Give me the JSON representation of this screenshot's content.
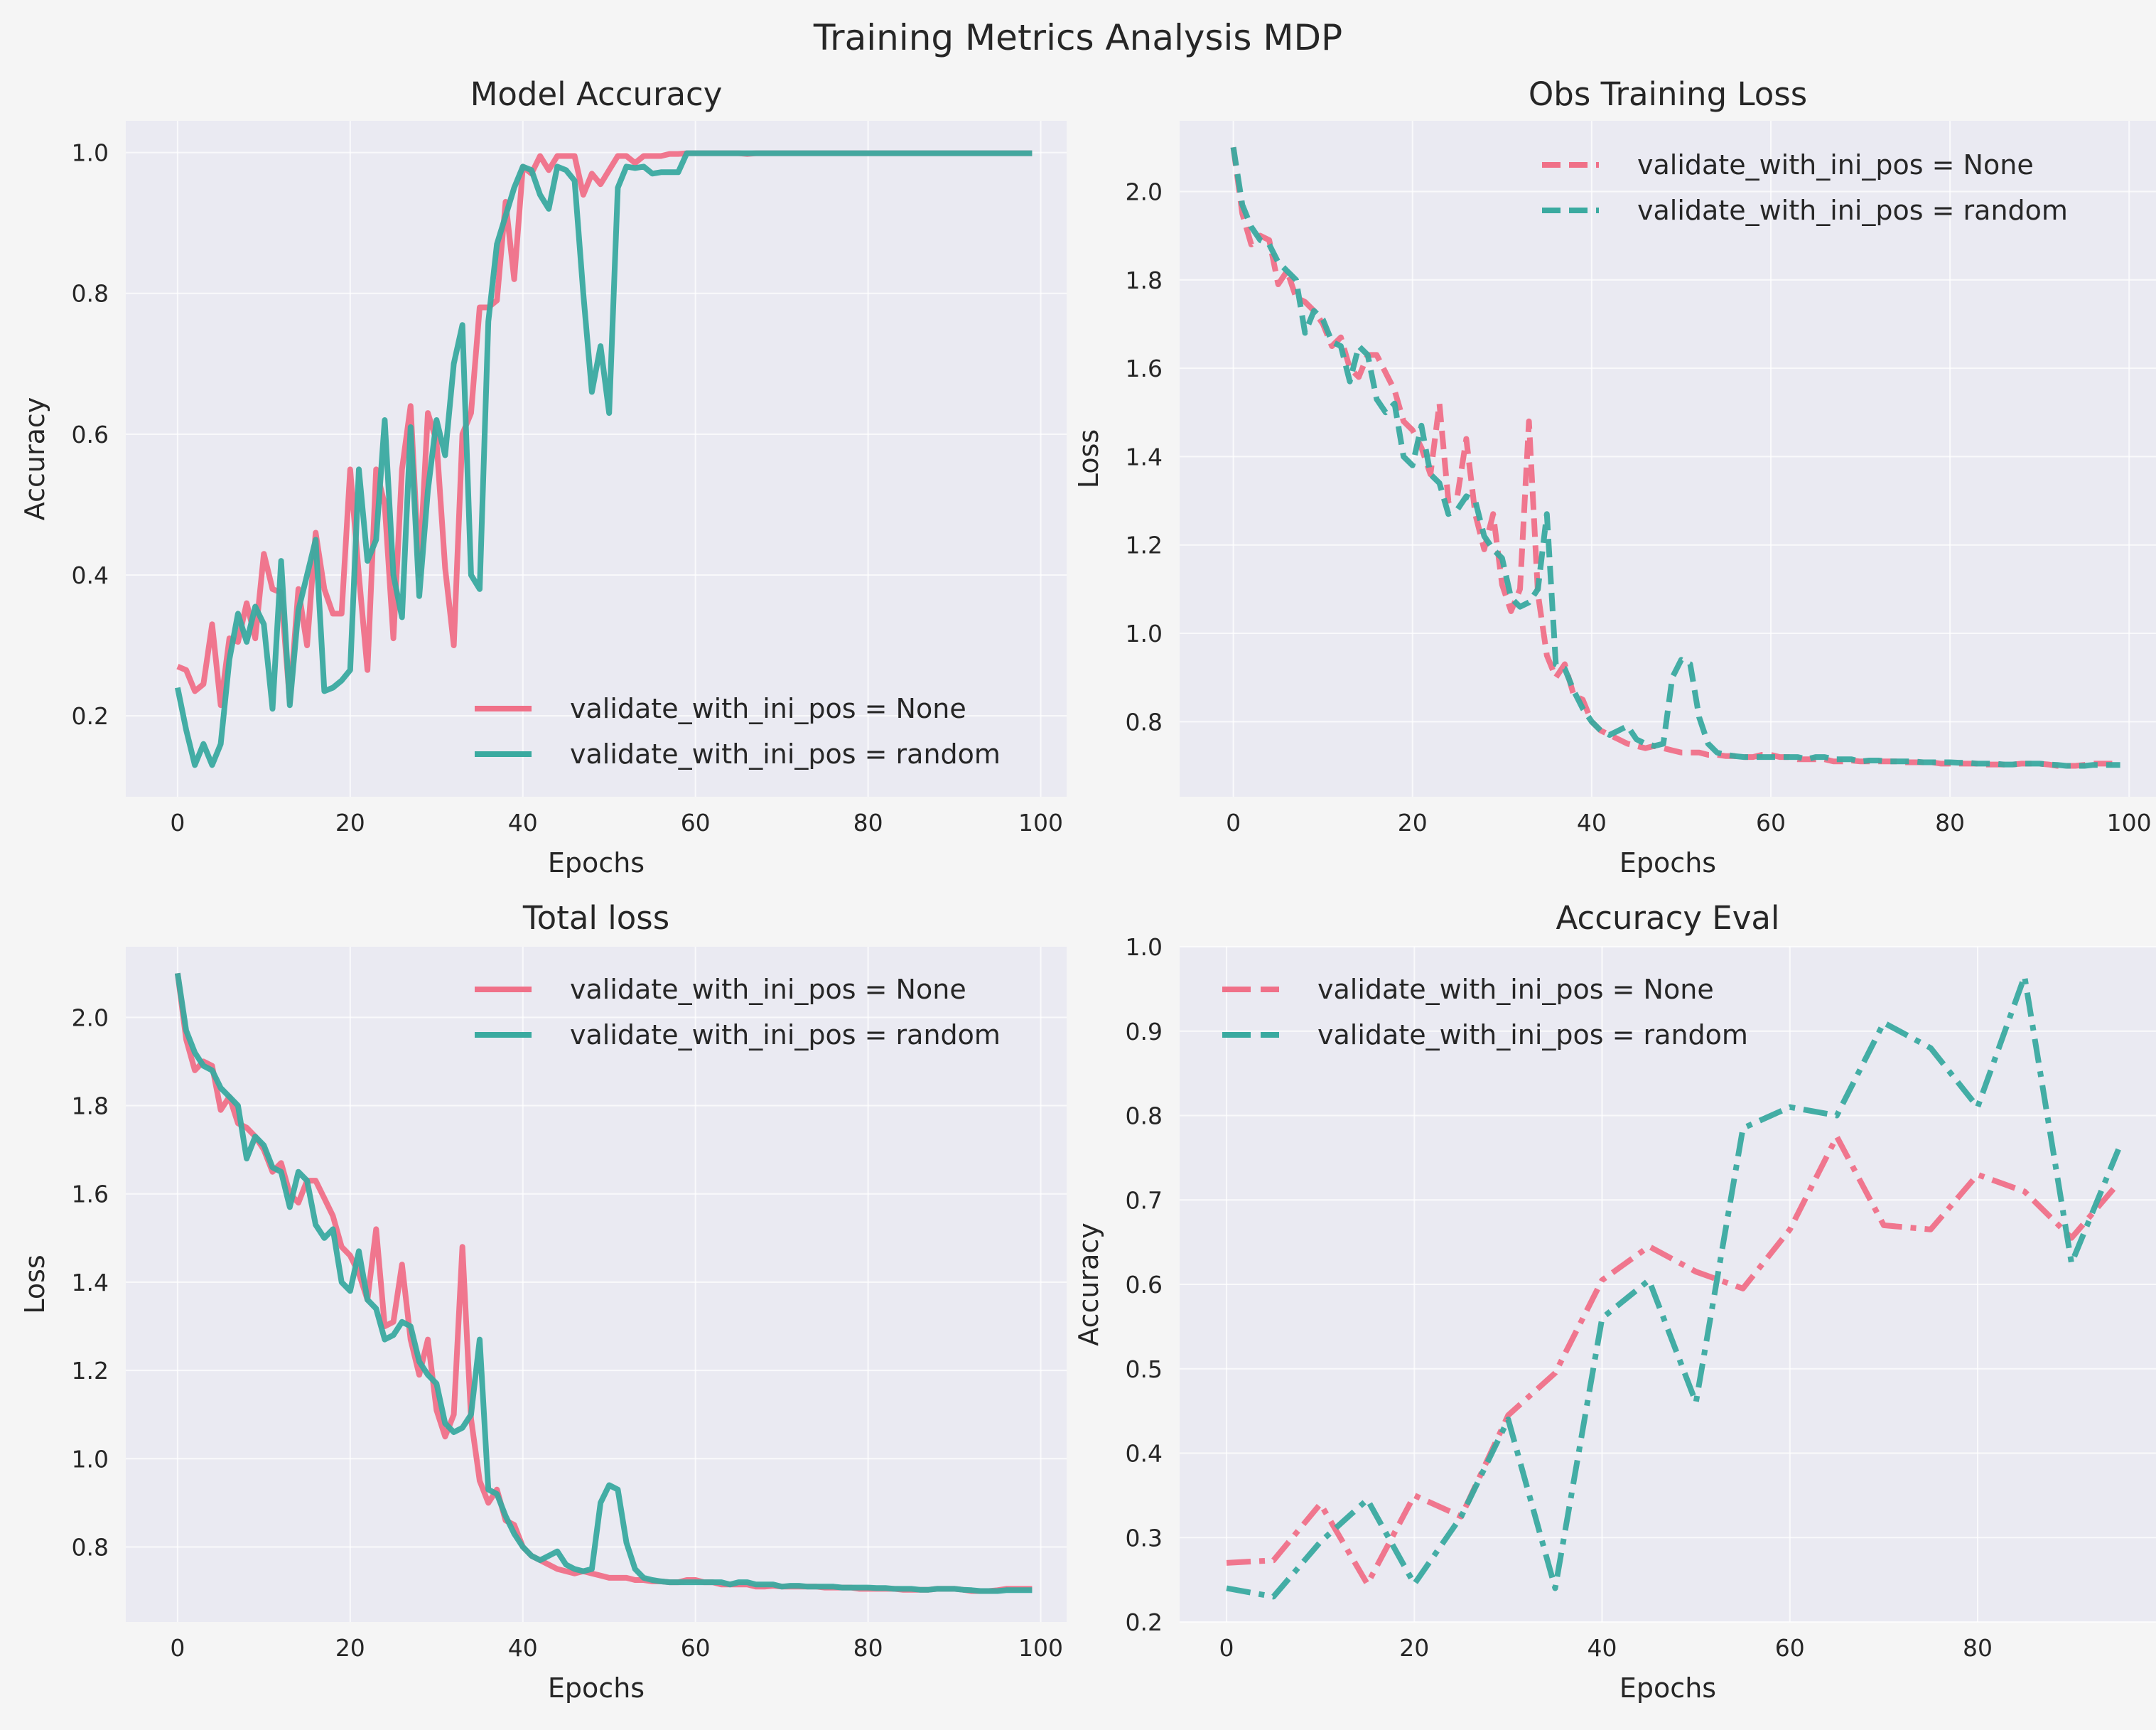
{
  "figure": {
    "title": "Training Metrics Analysis MDP",
    "colors": {
      "none": "#f07088",
      "random": "#3aaaa0",
      "background": "#f5f5f5",
      "plot_background": "#eaeaf2"
    }
  },
  "chart_data": [
    {
      "type": "line",
      "title": "Model Accuracy",
      "xlabel": "Epochs",
      "ylabel": "Accuracy",
      "xlim": [
        -6,
        103
      ],
      "ylim": [
        0.085,
        1.045
      ],
      "xticks": [
        0,
        20,
        40,
        60,
        80,
        100
      ],
      "yticks": [
        0.2,
        0.4,
        0.6,
        0.8,
        1.0
      ],
      "grid": true,
      "legend": "lower-right",
      "x": [
        0,
        1,
        2,
        3,
        4,
        5,
        6,
        7,
        8,
        9,
        10,
        11,
        12,
        13,
        14,
        15,
        16,
        17,
        18,
        19,
        20,
        21,
        22,
        23,
        24,
        25,
        26,
        27,
        28,
        29,
        30,
        31,
        32,
        33,
        34,
        35,
        36,
        37,
        38,
        39,
        40,
        41,
        42,
        43,
        44,
        45,
        46,
        47,
        48,
        49,
        50,
        51,
        52,
        53,
        54,
        55,
        56,
        57,
        58,
        59,
        60,
        61,
        62,
        63,
        64,
        65,
        66,
        67,
        68,
        69,
        70,
        71,
        72,
        73,
        74,
        75,
        76,
        77,
        78,
        79,
        80,
        81,
        82,
        83,
        84,
        85,
        86,
        87,
        88,
        89,
        90,
        91,
        92,
        93,
        94,
        95,
        96,
        97,
        98,
        99
      ],
      "series": [
        {
          "name": "validate_with_ini_pos = None",
          "style": "solid",
          "color": "#f07088",
          "values": [
            0.27,
            0.265,
            0.235,
            0.245,
            0.33,
            0.215,
            0.31,
            0.305,
            0.36,
            0.31,
            0.43,
            0.38,
            0.375,
            0.22,
            0.38,
            0.3,
            0.46,
            0.38,
            0.345,
            0.345,
            0.55,
            0.4,
            0.265,
            0.55,
            0.5,
            0.31,
            0.55,
            0.64,
            0.4,
            0.63,
            0.59,
            0.41,
            0.3,
            0.6,
            0.63,
            0.78,
            0.78,
            0.79,
            0.93,
            0.82,
            0.98,
            0.97,
            0.995,
            0.975,
            0.995,
            0.995,
            0.995,
            0.94,
            0.97,
            0.955,
            0.975,
            0.995,
            0.995,
            0.985,
            0.995,
            0.995,
            0.995,
            0.998,
            0.998,
            0.999,
            0.999,
            0.999,
            0.999,
            0.999,
            0.999,
            0.999,
            0.998,
            0.999,
            0.999,
            0.999,
            0.999,
            0.999,
            0.999,
            0.999,
            0.999,
            0.999,
            0.999,
            0.999,
            0.999,
            0.999,
            0.999,
            0.999,
            0.999,
            0.999,
            0.999,
            0.999,
            0.999,
            0.999,
            0.999,
            0.999,
            0.999,
            0.999,
            0.999,
            0.999,
            0.999,
            0.999,
            0.999,
            0.999,
            0.999,
            0.999
          ]
        },
        {
          "name": "validate_with_ini_pos = random",
          "style": "solid",
          "color": "#3aaaa0",
          "values": [
            0.24,
            0.18,
            0.13,
            0.16,
            0.13,
            0.16,
            0.28,
            0.345,
            0.305,
            0.355,
            0.33,
            0.21,
            0.42,
            0.215,
            0.35,
            0.4,
            0.45,
            0.235,
            0.24,
            0.25,
            0.265,
            0.55,
            0.42,
            0.45,
            0.62,
            0.4,
            0.34,
            0.61,
            0.37,
            0.52,
            0.62,
            0.57,
            0.7,
            0.755,
            0.4,
            0.38,
            0.76,
            0.87,
            0.91,
            0.95,
            0.98,
            0.975,
            0.94,
            0.92,
            0.98,
            0.975,
            0.96,
            0.8,
            0.66,
            0.725,
            0.63,
            0.95,
            0.98,
            0.978,
            0.98,
            0.97,
            0.972,
            0.972,
            0.972,
            0.999,
            0.999,
            0.999,
            0.999,
            0.999,
            0.999,
            0.999,
            0.999,
            0.999,
            0.999,
            0.999,
            0.999,
            0.999,
            0.999,
            0.999,
            0.999,
            0.999,
            0.999,
            0.999,
            0.999,
            0.999,
            0.999,
            0.999,
            0.999,
            0.999,
            0.999,
            0.999,
            0.999,
            0.999,
            0.999,
            0.999,
            0.999,
            0.999,
            0.999,
            0.999,
            0.999,
            0.999,
            0.999,
            0.999,
            0.999,
            0.999
          ]
        }
      ]
    },
    {
      "type": "line",
      "title": "Obs Training Loss",
      "xlabel": "Epochs",
      "ylabel": "Loss",
      "xlim": [
        -6,
        103
      ],
      "ylim": [
        0.63,
        2.16
      ],
      "xticks": [
        0,
        20,
        40,
        60,
        80,
        100
      ],
      "yticks": [
        0.8,
        1.0,
        1.2,
        1.4,
        1.6,
        1.8,
        2.0
      ],
      "grid": true,
      "legend": "upper-right",
      "x": [
        0,
        1,
        2,
        3,
        4,
        5,
        6,
        7,
        8,
        9,
        10,
        11,
        12,
        13,
        14,
        15,
        16,
        17,
        18,
        19,
        20,
        21,
        22,
        23,
        24,
        25,
        26,
        27,
        28,
        29,
        30,
        31,
        32,
        33,
        34,
        35,
        36,
        37,
        38,
        39,
        40,
        41,
        42,
        43,
        44,
        45,
        46,
        47,
        48,
        49,
        50,
        51,
        52,
        53,
        54,
        55,
        56,
        57,
        58,
        59,
        60,
        61,
        62,
        63,
        64,
        65,
        66,
        67,
        68,
        69,
        70,
        71,
        72,
        73,
        74,
        75,
        76,
        77,
        78,
        79,
        80,
        81,
        82,
        83,
        84,
        85,
        86,
        87,
        88,
        89,
        90,
        91,
        92,
        93,
        94,
        95,
        96,
        97,
        98,
        99
      ],
      "series": [
        {
          "name": "validate_with_ini_pos = None",
          "style": "dashed",
          "color": "#f07088",
          "values": [
            2.1,
            1.95,
            1.88,
            1.9,
            1.89,
            1.79,
            1.82,
            1.76,
            1.75,
            1.73,
            1.7,
            1.65,
            1.67,
            1.6,
            1.58,
            1.63,
            1.63,
            1.59,
            1.55,
            1.48,
            1.46,
            1.42,
            1.36,
            1.52,
            1.3,
            1.31,
            1.44,
            1.27,
            1.19,
            1.27,
            1.11,
            1.05,
            1.1,
            1.48,
            1.09,
            0.95,
            0.9,
            0.93,
            0.86,
            0.85,
            0.8,
            0.78,
            0.77,
            0.76,
            0.75,
            0.745,
            0.74,
            0.745,
            0.74,
            0.735,
            0.73,
            0.73,
            0.73,
            0.725,
            0.725,
            0.722,
            0.722,
            0.72,
            0.72,
            0.725,
            0.725,
            0.72,
            0.72,
            0.715,
            0.715,
            0.715,
            0.715,
            0.71,
            0.71,
            0.712,
            0.71,
            0.71,
            0.71,
            0.71,
            0.71,
            0.708,
            0.708,
            0.708,
            0.708,
            0.705,
            0.705,
            0.705,
            0.705,
            0.705,
            0.703,
            0.703,
            0.703,
            0.703,
            0.705,
            0.705,
            0.705,
            0.703,
            0.7,
            0.7,
            0.7,
            0.702,
            0.705,
            0.705,
            0.705,
            0.705
          ]
        },
        {
          "name": "validate_with_ini_pos = random",
          "style": "dashed",
          "color": "#3aaaa0",
          "values": [
            2.1,
            1.97,
            1.92,
            1.89,
            1.88,
            1.84,
            1.82,
            1.8,
            1.68,
            1.73,
            1.71,
            1.66,
            1.65,
            1.57,
            1.65,
            1.63,
            1.53,
            1.5,
            1.52,
            1.4,
            1.38,
            1.47,
            1.36,
            1.34,
            1.27,
            1.28,
            1.31,
            1.3,
            1.22,
            1.19,
            1.17,
            1.08,
            1.06,
            1.07,
            1.1,
            1.27,
            0.93,
            0.92,
            0.87,
            0.83,
            0.8,
            0.78,
            0.77,
            0.78,
            0.79,
            0.76,
            0.75,
            0.745,
            0.75,
            0.9,
            0.94,
            0.93,
            0.81,
            0.75,
            0.73,
            0.725,
            0.722,
            0.72,
            0.72,
            0.72,
            0.72,
            0.72,
            0.72,
            0.72,
            0.715,
            0.72,
            0.72,
            0.715,
            0.715,
            0.715,
            0.71,
            0.712,
            0.712,
            0.71,
            0.71,
            0.71,
            0.71,
            0.708,
            0.708,
            0.708,
            0.708,
            0.707,
            0.707,
            0.705,
            0.705,
            0.705,
            0.703,
            0.703,
            0.705,
            0.705,
            0.705,
            0.703,
            0.702,
            0.7,
            0.7,
            0.7,
            0.702,
            0.702,
            0.702,
            0.702
          ]
        }
      ]
    },
    {
      "type": "line",
      "title": "Total loss",
      "xlabel": "Epochs",
      "ylabel": "Loss",
      "xlim": [
        -6,
        103
      ],
      "ylim": [
        0.63,
        2.16
      ],
      "xticks": [
        0,
        20,
        40,
        60,
        80,
        100
      ],
      "yticks": [
        0.8,
        1.0,
        1.2,
        1.4,
        1.6,
        1.8,
        2.0
      ],
      "grid": true,
      "legend": "upper-right",
      "x": [
        0,
        1,
        2,
        3,
        4,
        5,
        6,
        7,
        8,
        9,
        10,
        11,
        12,
        13,
        14,
        15,
        16,
        17,
        18,
        19,
        20,
        21,
        22,
        23,
        24,
        25,
        26,
        27,
        28,
        29,
        30,
        31,
        32,
        33,
        34,
        35,
        36,
        37,
        38,
        39,
        40,
        41,
        42,
        43,
        44,
        45,
        46,
        47,
        48,
        49,
        50,
        51,
        52,
        53,
        54,
        55,
        56,
        57,
        58,
        59,
        60,
        61,
        62,
        63,
        64,
        65,
        66,
        67,
        68,
        69,
        70,
        71,
        72,
        73,
        74,
        75,
        76,
        77,
        78,
        79,
        80,
        81,
        82,
        83,
        84,
        85,
        86,
        87,
        88,
        89,
        90,
        91,
        92,
        93,
        94,
        95,
        96,
        97,
        98,
        99
      ],
      "series": [
        {
          "name": "validate_with_ini_pos = None",
          "style": "solid",
          "color": "#f07088",
          "values": [
            2.1,
            1.95,
            1.88,
            1.9,
            1.89,
            1.79,
            1.82,
            1.76,
            1.75,
            1.73,
            1.7,
            1.65,
            1.67,
            1.6,
            1.58,
            1.63,
            1.63,
            1.59,
            1.55,
            1.48,
            1.46,
            1.42,
            1.36,
            1.52,
            1.3,
            1.31,
            1.44,
            1.27,
            1.19,
            1.27,
            1.11,
            1.05,
            1.1,
            1.48,
            1.09,
            0.95,
            0.9,
            0.93,
            0.86,
            0.85,
            0.8,
            0.78,
            0.77,
            0.76,
            0.75,
            0.745,
            0.74,
            0.745,
            0.74,
            0.735,
            0.73,
            0.73,
            0.73,
            0.725,
            0.725,
            0.722,
            0.722,
            0.72,
            0.72,
            0.725,
            0.725,
            0.72,
            0.72,
            0.715,
            0.715,
            0.715,
            0.715,
            0.71,
            0.71,
            0.712,
            0.71,
            0.71,
            0.71,
            0.71,
            0.71,
            0.708,
            0.708,
            0.708,
            0.708,
            0.705,
            0.705,
            0.705,
            0.705,
            0.705,
            0.703,
            0.703,
            0.703,
            0.703,
            0.705,
            0.705,
            0.705,
            0.703,
            0.7,
            0.7,
            0.7,
            0.702,
            0.705,
            0.705,
            0.705,
            0.705
          ]
        },
        {
          "name": "validate_with_ini_pos = random",
          "style": "solid",
          "color": "#3aaaa0",
          "values": [
            2.1,
            1.97,
            1.92,
            1.89,
            1.88,
            1.84,
            1.82,
            1.8,
            1.68,
            1.73,
            1.71,
            1.66,
            1.65,
            1.57,
            1.65,
            1.63,
            1.53,
            1.5,
            1.52,
            1.4,
            1.38,
            1.47,
            1.36,
            1.34,
            1.27,
            1.28,
            1.31,
            1.3,
            1.22,
            1.19,
            1.17,
            1.08,
            1.06,
            1.07,
            1.1,
            1.27,
            0.93,
            0.92,
            0.87,
            0.83,
            0.8,
            0.78,
            0.77,
            0.78,
            0.79,
            0.76,
            0.75,
            0.745,
            0.75,
            0.9,
            0.94,
            0.93,
            0.81,
            0.75,
            0.73,
            0.725,
            0.722,
            0.72,
            0.72,
            0.72,
            0.72,
            0.72,
            0.72,
            0.72,
            0.715,
            0.72,
            0.72,
            0.715,
            0.715,
            0.715,
            0.71,
            0.712,
            0.712,
            0.71,
            0.71,
            0.71,
            0.71,
            0.708,
            0.708,
            0.708,
            0.708,
            0.707,
            0.707,
            0.705,
            0.705,
            0.705,
            0.703,
            0.703,
            0.705,
            0.705,
            0.705,
            0.703,
            0.702,
            0.7,
            0.7,
            0.7,
            0.702,
            0.702,
            0.702,
            0.702
          ]
        }
      ]
    },
    {
      "type": "line",
      "title": "Accuracy Eval",
      "xlabel": "Epochs",
      "ylabel": "Accuracy",
      "xlim": [
        -5,
        99
      ],
      "ylim": [
        0.2,
        1.0
      ],
      "xticks": [
        0,
        20,
        40,
        60,
        80
      ],
      "yticks": [
        0.2,
        0.3,
        0.4,
        0.5,
        0.6,
        0.7,
        0.8,
        0.9,
        1.0
      ],
      "grid": true,
      "legend": "upper-left",
      "x": [
        0,
        5,
        10,
        15,
        20,
        25,
        30,
        35,
        40,
        45,
        50,
        55,
        60,
        65,
        70,
        75,
        80,
        85,
        90,
        95
      ],
      "series": [
        {
          "name": "validate_with_ini_pos = None",
          "style": "dashdot",
          "color": "#f07088",
          "values": [
            0.27,
            0.273,
            0.34,
            0.245,
            0.35,
            0.325,
            0.445,
            0.495,
            0.605,
            0.645,
            0.615,
            0.595,
            0.665,
            0.775,
            0.67,
            0.665,
            0.73,
            0.71,
            0.655,
            0.72
          ]
        },
        {
          "name": "validate_with_ini_pos = random",
          "style": "dashdot",
          "color": "#3aaaa0",
          "values": [
            0.24,
            0.23,
            0.295,
            0.345,
            0.245,
            0.325,
            0.44,
            0.24,
            0.56,
            0.605,
            0.46,
            0.785,
            0.81,
            0.8,
            0.91,
            0.88,
            0.81,
            0.965,
            0.625,
            0.76
          ]
        }
      ]
    }
  ]
}
